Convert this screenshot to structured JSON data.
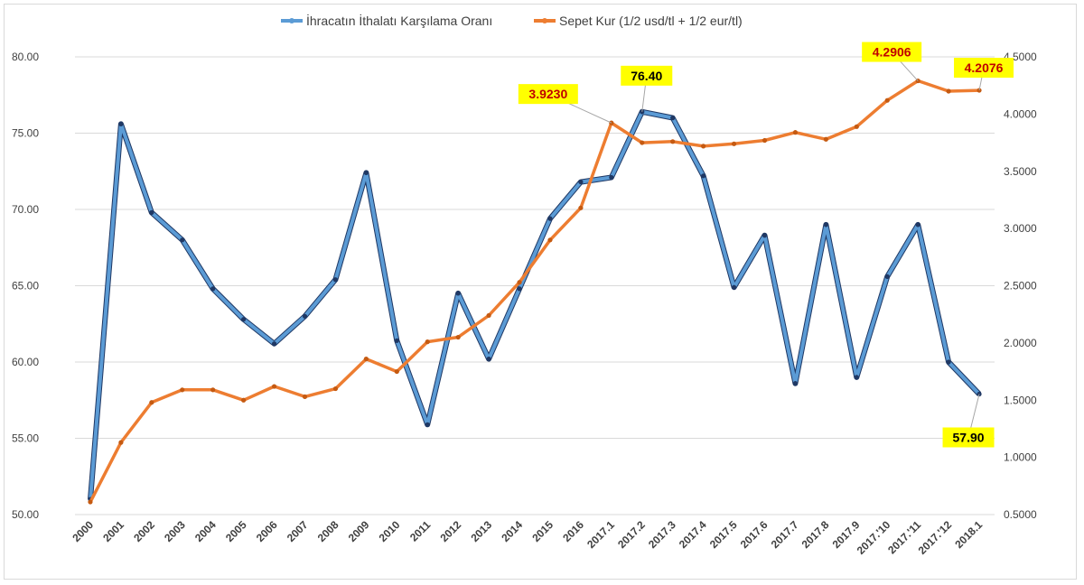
{
  "chart_data": {
    "type": "line",
    "title": "",
    "categories": [
      "2000",
      "2001",
      "2002",
      "2003",
      "2004",
      "2005",
      "2006",
      "2007",
      "2008",
      "2009",
      "2010",
      "2011",
      "2012",
      "2013",
      "2014",
      "2015",
      "2016",
      "2017.1",
      "2017.2",
      "2017.3",
      "2017.4",
      "2017.5",
      "2017.6",
      "2017.7",
      "2017.8",
      "2017.9",
      "2017.'10",
      "2017.'11",
      "2017.'12",
      "2018.1"
    ],
    "series": [
      {
        "name": "İhracatın İthalatı Karşılama Oranı",
        "axis": "left",
        "color": "#5B9BD5",
        "values": [
          51.0,
          75.6,
          69.8,
          68.0,
          64.8,
          62.8,
          61.2,
          63.0,
          65.4,
          72.4,
          61.4,
          55.9,
          64.5,
          60.2,
          64.8,
          69.4,
          71.8,
          72.1,
          76.4,
          76.0,
          72.2,
          64.9,
          68.3,
          58.6,
          69.0,
          59.0,
          65.6,
          69.0,
          60.0,
          57.9
        ]
      },
      {
        "name": "Sepet Kur (1/2 usd/tl + 1/2 eur/tl)",
        "axis": "right",
        "color": "#ED7D31",
        "values": [
          0.61,
          1.13,
          1.48,
          1.59,
          1.59,
          1.5,
          1.62,
          1.53,
          1.6,
          1.86,
          1.75,
          2.01,
          2.05,
          2.24,
          2.53,
          2.9,
          3.18,
          3.923,
          3.75,
          3.76,
          3.72,
          3.74,
          3.77,
          3.84,
          3.78,
          3.89,
          4.12,
          4.2906,
          4.2,
          4.2076
        ]
      }
    ],
    "y_left": {
      "min": 50,
      "max": 80,
      "step": 5,
      "tick_labels": [
        "50.00",
        "55.00",
        "60.00",
        "65.00",
        "70.00",
        "75.00",
        "80.00"
      ]
    },
    "y_right": {
      "min": 0.5,
      "max": 4.5,
      "step": 0.5,
      "tick_labels": [
        "0.5000",
        "1.0000",
        "1.5000",
        "2.0000",
        "2.5000",
        "3.0000",
        "3.5000",
        "4.0000",
        "4.5000"
      ]
    },
    "grid": true,
    "legend_position": "top",
    "annotations": [
      {
        "text": "76.40",
        "series": 0,
        "index": 18,
        "text_color": "#000000",
        "bg": "#FFFF00"
      },
      {
        "text": "57.90",
        "series": 0,
        "index": 29,
        "text_color": "#000000",
        "bg": "#FFFF00"
      },
      {
        "text": "3.9230",
        "series": 1,
        "index": 17,
        "text_color": "#C00000",
        "bg": "#FFFF00"
      },
      {
        "text": "4.2906",
        "series": 1,
        "index": 27,
        "text_color": "#C00000",
        "bg": "#FFFF00"
      },
      {
        "text": "4.2076",
        "series": 1,
        "index": 29,
        "text_color": "#C00000",
        "bg": "#FFFF00"
      }
    ]
  }
}
